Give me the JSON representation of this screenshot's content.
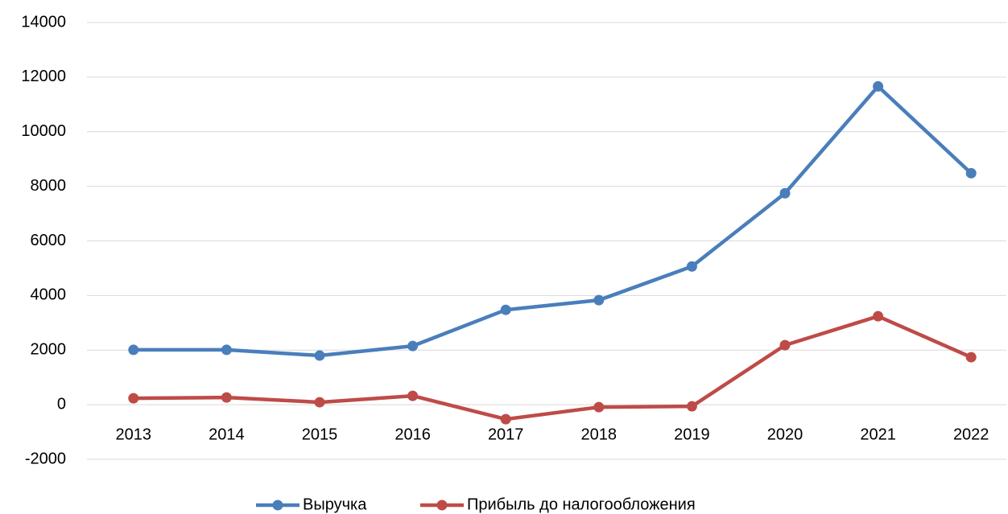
{
  "chart_data": {
    "type": "line",
    "categories": [
      "2013",
      "2014",
      "2015",
      "2016",
      "2017",
      "2018",
      "2019",
      "2020",
      "2021",
      "2022"
    ],
    "series": [
      {
        "name": "Выручка",
        "color": "#4a7ebb",
        "values": [
          2010,
          2010,
          1800,
          2150,
          3475,
          3830,
          5065,
          7745,
          11660,
          8480
        ]
      },
      {
        "name": "Прибыль до налогообложения",
        "color": "#be4b48",
        "values": [
          235,
          265,
          90,
          325,
          -530,
          -90,
          -60,
          2180,
          3240,
          1740
        ]
      }
    ],
    "ylim": [
      -2000,
      14000
    ],
    "yticks": [
      -2000,
      0,
      2000,
      4000,
      6000,
      8000,
      10000,
      12000,
      14000
    ],
    "grid": true,
    "legend": "bottom"
  }
}
